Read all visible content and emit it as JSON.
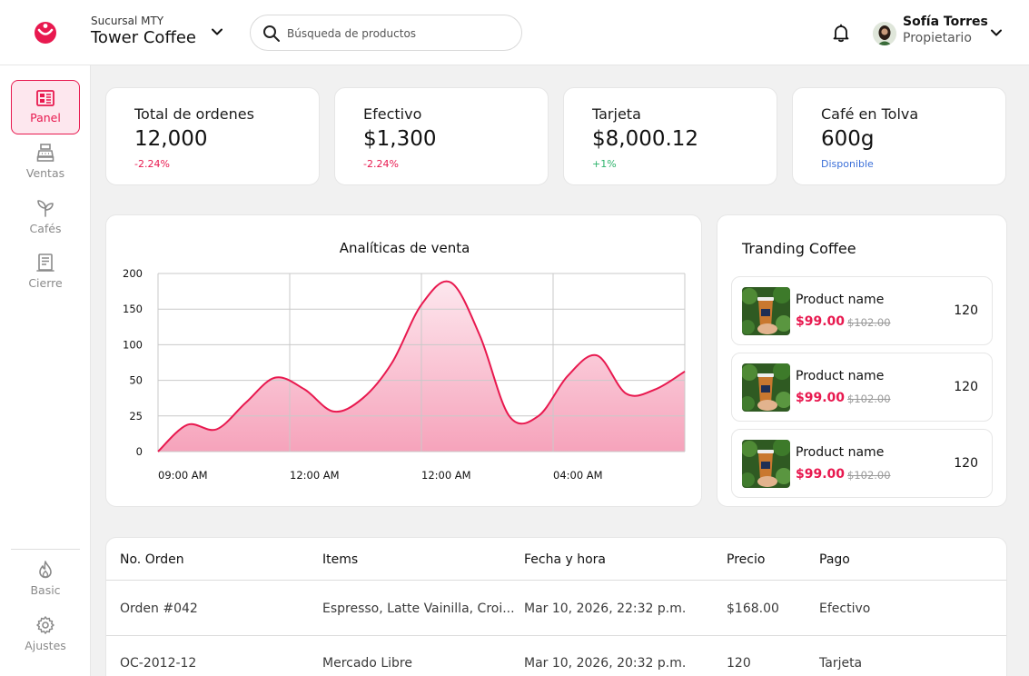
{
  "header": {
    "branch_sub": "Sucursal MTY",
    "branch_name": "Tower Coffee",
    "search_placeholder": "Búsqueda de productos",
    "user_name": "Sofía Torres",
    "user_role": "Propietario"
  },
  "colors": {
    "accent": "#e8194f",
    "negative": "#e8194f",
    "positive": "#2db36b",
    "info": "#3b6fd8"
  },
  "sidebar": {
    "items": [
      {
        "label": "Panel",
        "icon": "dashboard-icon",
        "active": true
      },
      {
        "label": "Ventas",
        "icon": "cash-register-icon"
      },
      {
        "label": "Cafés",
        "icon": "sprout-icon"
      },
      {
        "label": "Cierre",
        "icon": "receipt-icon"
      }
    ],
    "bottom": [
      {
        "label": "Basic",
        "icon": "flame-icon"
      },
      {
        "label": "Ajustes",
        "icon": "gear-icon"
      }
    ]
  },
  "stats": [
    {
      "title": "Total de ordenes",
      "value": "12,000",
      "delta": "-2.24%"
    },
    {
      "title": "Efectivo",
      "value": "$1,300",
      "delta": "-2.24%"
    },
    {
      "title": "Tarjeta",
      "value": "$8,000.12",
      "delta": "+1%"
    },
    {
      "title": "Café en Tolva",
      "value": "600g",
      "delta": "Disponible"
    }
  ],
  "chart_title": "Analíticas de venta",
  "chart_data": {
    "type": "area",
    "title": "Analíticas de venta",
    "x_ticks": [
      "09:00 AM",
      "12:00 AM",
      "12:00 AM",
      "04:00 AM"
    ],
    "y_ticks": [
      "0",
      "25",
      "50",
      "100",
      "150",
      "200"
    ],
    "series": [
      {
        "values": [
          0,
          30,
          25,
          55,
          83,
          70,
          45,
          60,
          100,
          165,
          190,
          130,
          40,
          40,
          85,
          108,
          65,
          70,
          90
        ]
      }
    ],
    "grid": true
  },
  "trending": {
    "title": "Tranding Coffee",
    "items": [
      {
        "name": "Product name",
        "price": "$99.00",
        "old_price": "$102.00",
        "qty": "120"
      },
      {
        "name": "Product name",
        "price": "$99.00",
        "old_price": "$102.00",
        "qty": "120"
      },
      {
        "name": "Product name",
        "price": "$99.00",
        "old_price": "$102.00",
        "qty": "120"
      }
    ]
  },
  "table": {
    "headers": [
      "No. Orden",
      "Items",
      "Fecha y hora",
      "Precio",
      "Pago"
    ],
    "rows": [
      [
        "Orden #042",
        "Espresso, Latte Vainilla, Croi...",
        "Mar 10, 2026, 22:32 p.m.",
        "$168.00",
        "Efectivo"
      ],
      [
        "OC-2012-12",
        "Mercado Libre",
        "Mar 10, 2026, 20:32 p.m.",
        "120",
        "Tarjeta"
      ]
    ]
  }
}
